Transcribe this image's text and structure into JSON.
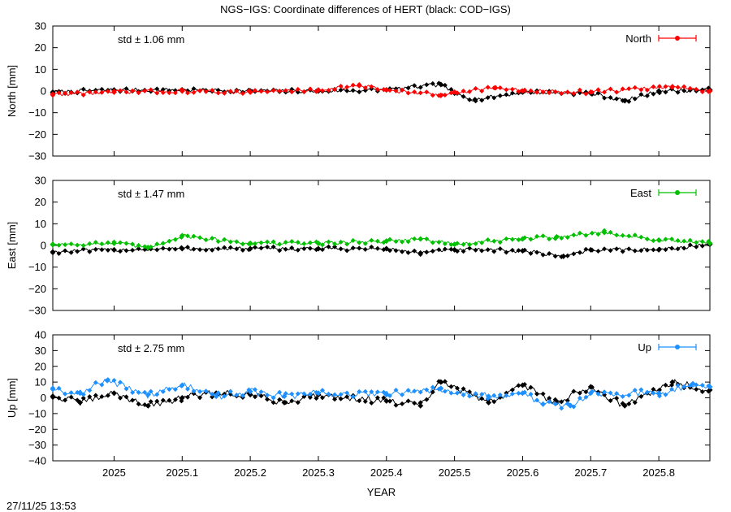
{
  "title": "NGS−IGS: Coordinate differences of HERT (black: COD−IGS)",
  "timestamp": "27/11/25 13:53",
  "colors": {
    "north": "#ff0000",
    "east": "#00c000",
    "up": "#1e90ff",
    "cod": "#000000"
  },
  "chart_data": [
    {
      "type": "line",
      "ylabel": "North [mm]",
      "ylim": [
        -30,
        30
      ],
      "yticks": [
        "30",
        "20",
        "10",
        "0",
        "−10",
        "−20",
        "−30"
      ],
      "xlim": [
        2024.91,
        2025.875
      ],
      "std_label": "std ± 1.06 mm",
      "legend": "North",
      "legend_position": "top-right",
      "grid": false,
      "series": [
        {
          "color": "red",
          "x": [
            2024.91,
            2025.0,
            2025.1,
            2025.2,
            2025.3,
            2025.36,
            2025.4,
            2025.48,
            2025.5,
            2025.56,
            2025.6,
            2025.7,
            2025.82,
            2025.875
          ],
          "values": [
            -1.5,
            -0.5,
            0.0,
            -0.5,
            0.5,
            2.5,
            0.5,
            -2.0,
            -0.5,
            1.5,
            0.0,
            -0.5,
            2.0,
            0.0
          ]
        },
        {
          "color": "black",
          "x": [
            2024.91,
            2025.0,
            2025.1,
            2025.2,
            2025.3,
            2025.4,
            2025.48,
            2025.5,
            2025.53,
            2025.6,
            2025.7,
            2025.75,
            2025.8,
            2025.875
          ],
          "values": [
            -0.5,
            0.5,
            0.5,
            0.0,
            0.0,
            0.5,
            3.0,
            -1.0,
            -4.0,
            -0.5,
            -1.0,
            -4.5,
            0.0,
            0.5
          ]
        }
      ]
    },
    {
      "type": "line",
      "ylabel": "East [mm]",
      "ylim": [
        -30,
        30
      ],
      "yticks": [
        "30",
        "20",
        "10",
        "0",
        "−10",
        "−20",
        "−30"
      ],
      "xlim": [
        2024.91,
        2025.875
      ],
      "std_label": "std ± 1.47 mm",
      "legend": "East",
      "legend_position": "top-right",
      "grid": false,
      "series": [
        {
          "color": "green",
          "x": [
            2024.91,
            2025.0,
            2025.05,
            2025.1,
            2025.2,
            2025.3,
            2025.4,
            2025.45,
            2025.5,
            2025.6,
            2025.65,
            2025.72,
            2025.8,
            2025.875
          ],
          "values": [
            0.5,
            1.0,
            -1.0,
            4.5,
            1.0,
            1.0,
            2.0,
            3.0,
            0.5,
            3.0,
            4.0,
            6.0,
            2.5,
            1.0
          ]
        },
        {
          "color": "black",
          "x": [
            2024.91,
            2025.0,
            2025.1,
            2025.2,
            2025.3,
            2025.4,
            2025.45,
            2025.5,
            2025.6,
            2025.66,
            2025.7,
            2025.8,
            2025.875
          ],
          "values": [
            -3.0,
            -2.0,
            -1.5,
            -1.5,
            -1.5,
            -1.5,
            -3.5,
            -2.0,
            -2.5,
            -5.0,
            -2.0,
            -2.0,
            0.5
          ]
        }
      ]
    },
    {
      "type": "line",
      "ylabel": "Up [mm]",
      "ylim": [
        -40,
        40
      ],
      "yticks": [
        "40",
        "30",
        "20",
        "10",
        "0",
        "−10",
        "−20",
        "−30",
        "−40"
      ],
      "xlim": [
        2024.91,
        2025.875
      ],
      "xticks": [
        "2025",
        "2025.1",
        "2025.2",
        "2025.3",
        "2025.4",
        "2025.5",
        "2025.6",
        "2025.7",
        "2025.8"
      ],
      "xtick_values": [
        2025.0,
        2025.1,
        2025.2,
        2025.3,
        2025.4,
        2025.5,
        2025.6,
        2025.7,
        2025.8
      ],
      "xlabel": "YEAR",
      "std_label": "std ± 2.75 mm",
      "legend": "Up",
      "legend_position": "top-right",
      "grid": false,
      "series": [
        {
          "color": "blue",
          "x": [
            2024.91,
            2024.95,
            2024.99,
            2025.05,
            2025.1,
            2025.15,
            2025.2,
            2025.25,
            2025.3,
            2025.4,
            2025.48,
            2025.55,
            2025.6,
            2025.63,
            2025.67,
            2025.7,
            2025.8,
            2025.85,
            2025.875
          ],
          "values": [
            6.0,
            3.0,
            11.0,
            2.0,
            8.0,
            1.0,
            4.0,
            1.0,
            3.0,
            2.0,
            6.0,
            1.0,
            3.0,
            -4.0,
            -5.0,
            3.0,
            3.0,
            9.0,
            7.0
          ]
        },
        {
          "color": "black",
          "x": [
            2024.91,
            2024.95,
            2025.0,
            2025.05,
            2025.1,
            2025.15,
            2025.2,
            2025.25,
            2025.3,
            2025.4,
            2025.45,
            2025.48,
            2025.55,
            2025.6,
            2025.65,
            2025.7,
            2025.75,
            2025.82,
            2025.875
          ],
          "values": [
            1.0,
            -3.0,
            3.0,
            -5.0,
            0.0,
            3.0,
            2.0,
            -3.0,
            2.0,
            -2.0,
            -5.0,
            10.0,
            -3.0,
            8.0,
            -3.0,
            7.0,
            -5.0,
            10.0,
            5.0
          ]
        }
      ]
    }
  ]
}
